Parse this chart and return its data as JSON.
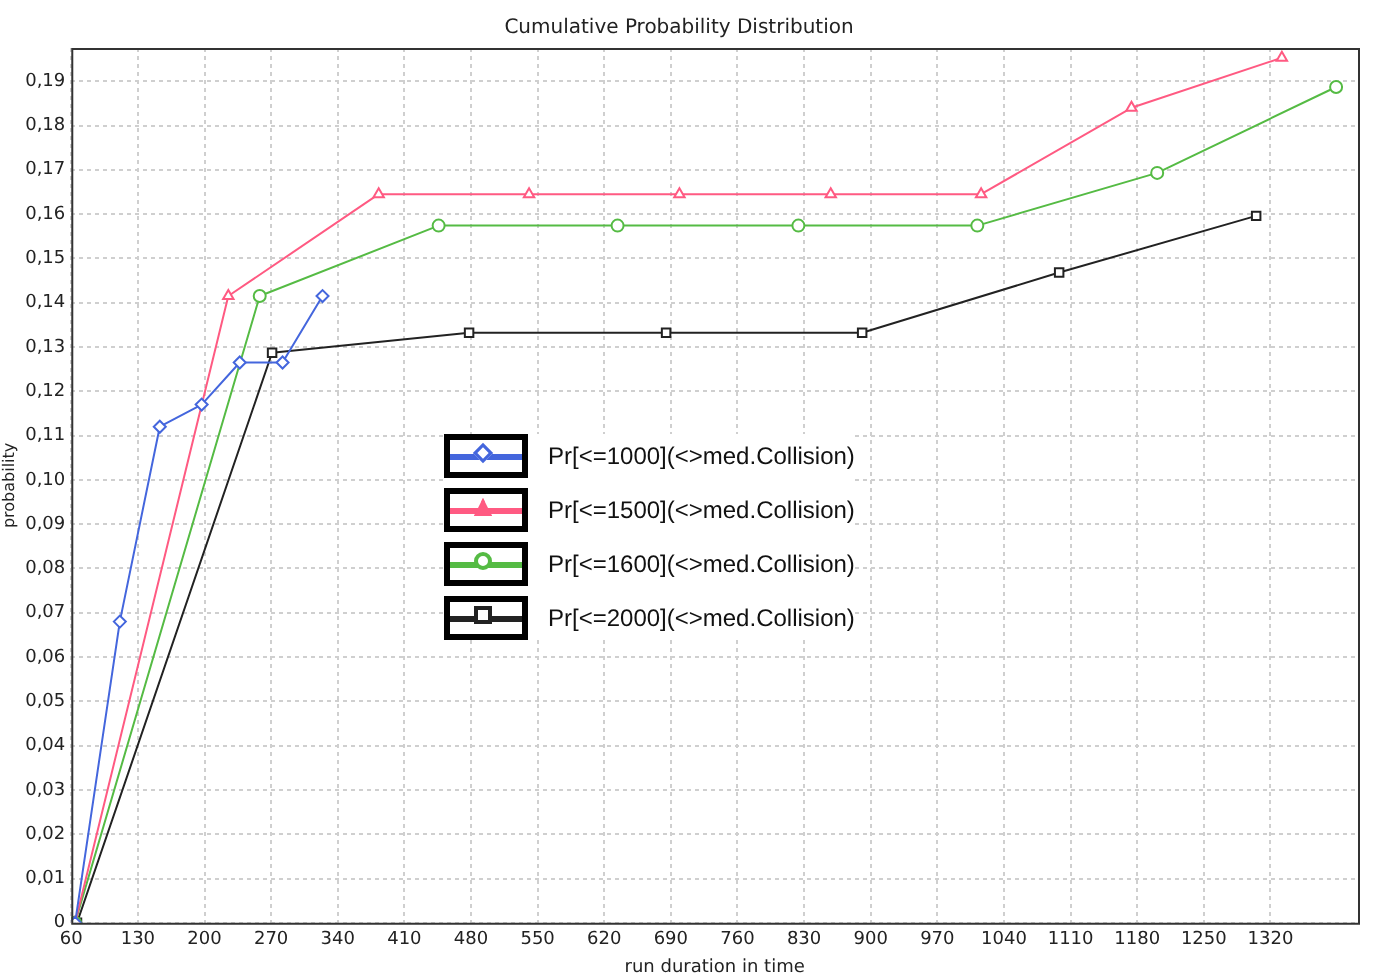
{
  "chart_data": {
    "type": "line",
    "title": "Cumulative Probability Distribution",
    "xlabel": "run duration in time",
    "ylabel": "probability",
    "xlim": [
      60,
      1412
    ],
    "xticks": [
      60,
      130,
      200,
      270,
      340,
      410,
      480,
      550,
      620,
      690,
      760,
      830,
      900,
      970,
      1040,
      1110,
      1180,
      1250,
      1320
    ],
    "ylim": [
      0,
      0.1975
    ],
    "yticks": [
      {
        "value": 0,
        "label": "0"
      },
      {
        "value": 0.01,
        "label": "0,01"
      },
      {
        "value": 0.02,
        "label": "0,02"
      },
      {
        "value": 0.03,
        "label": "0,03"
      },
      {
        "value": 0.04,
        "label": "0,04"
      },
      {
        "value": 0.05,
        "label": "0,05"
      },
      {
        "value": 0.06,
        "label": "0,06"
      },
      {
        "value": 0.07,
        "label": "0,07"
      },
      {
        "value": 0.08,
        "label": "0,08"
      },
      {
        "value": 0.09,
        "label": "0,09"
      },
      {
        "value": 0.1,
        "label": "0,10"
      },
      {
        "value": 0.11,
        "label": "0,11"
      },
      {
        "value": 0.12,
        "label": "0,12"
      },
      {
        "value": 0.13,
        "label": "0,13"
      },
      {
        "value": 0.14,
        "label": "0,14"
      },
      {
        "value": 0.15,
        "label": "0,15"
      },
      {
        "value": 0.16,
        "label": "0,16"
      },
      {
        "value": 0.17,
        "label": "0,17"
      },
      {
        "value": 0.18,
        "label": "0,18"
      },
      {
        "value": 0.19,
        "label": "0,19"
      }
    ],
    "grid": true,
    "legend": "center",
    "line_style": "solid",
    "series": [
      {
        "name": "Pr[<=1000](<>med.Collision)",
        "color": "#4466dd",
        "marker": "diamond",
        "x": [
          64,
          111,
          153,
          197,
          237,
          282,
          324
        ],
        "values": [
          0,
          0.068,
          0.112,
          0.117,
          0.1265,
          0.1265,
          0.1415
        ]
      },
      {
        "name": "Pr[<=1500](<>med.Collision)",
        "color": "#ff5a82",
        "marker": "triangle",
        "x": [
          64,
          225,
          383,
          541,
          699,
          858,
          1016,
          1174,
          1332
        ],
        "values": [
          0,
          0.1415,
          0.1645,
          0.1645,
          0.1645,
          0.1645,
          0.1645,
          0.184,
          0.1953
        ]
      },
      {
        "name": "Pr[<=1600](<>med.Collision)",
        "color": "#55bb44",
        "marker": "circle",
        "x": [
          64,
          258,
          446,
          634,
          824,
          1012,
          1201,
          1389
        ],
        "values": [
          0,
          0.1415,
          0.1574,
          0.1574,
          0.1574,
          0.1574,
          0.1693,
          0.1887
        ]
      },
      {
        "name": "Pr[<=2000](<>med.Collision)",
        "color": "#222222",
        "marker": "square",
        "x": [
          66,
          271,
          478,
          685,
          891,
          1098,
          1305
        ],
        "values": [
          0,
          0.1287,
          0.1332,
          0.1332,
          0.1332,
          0.1468,
          0.1596
        ]
      }
    ]
  }
}
